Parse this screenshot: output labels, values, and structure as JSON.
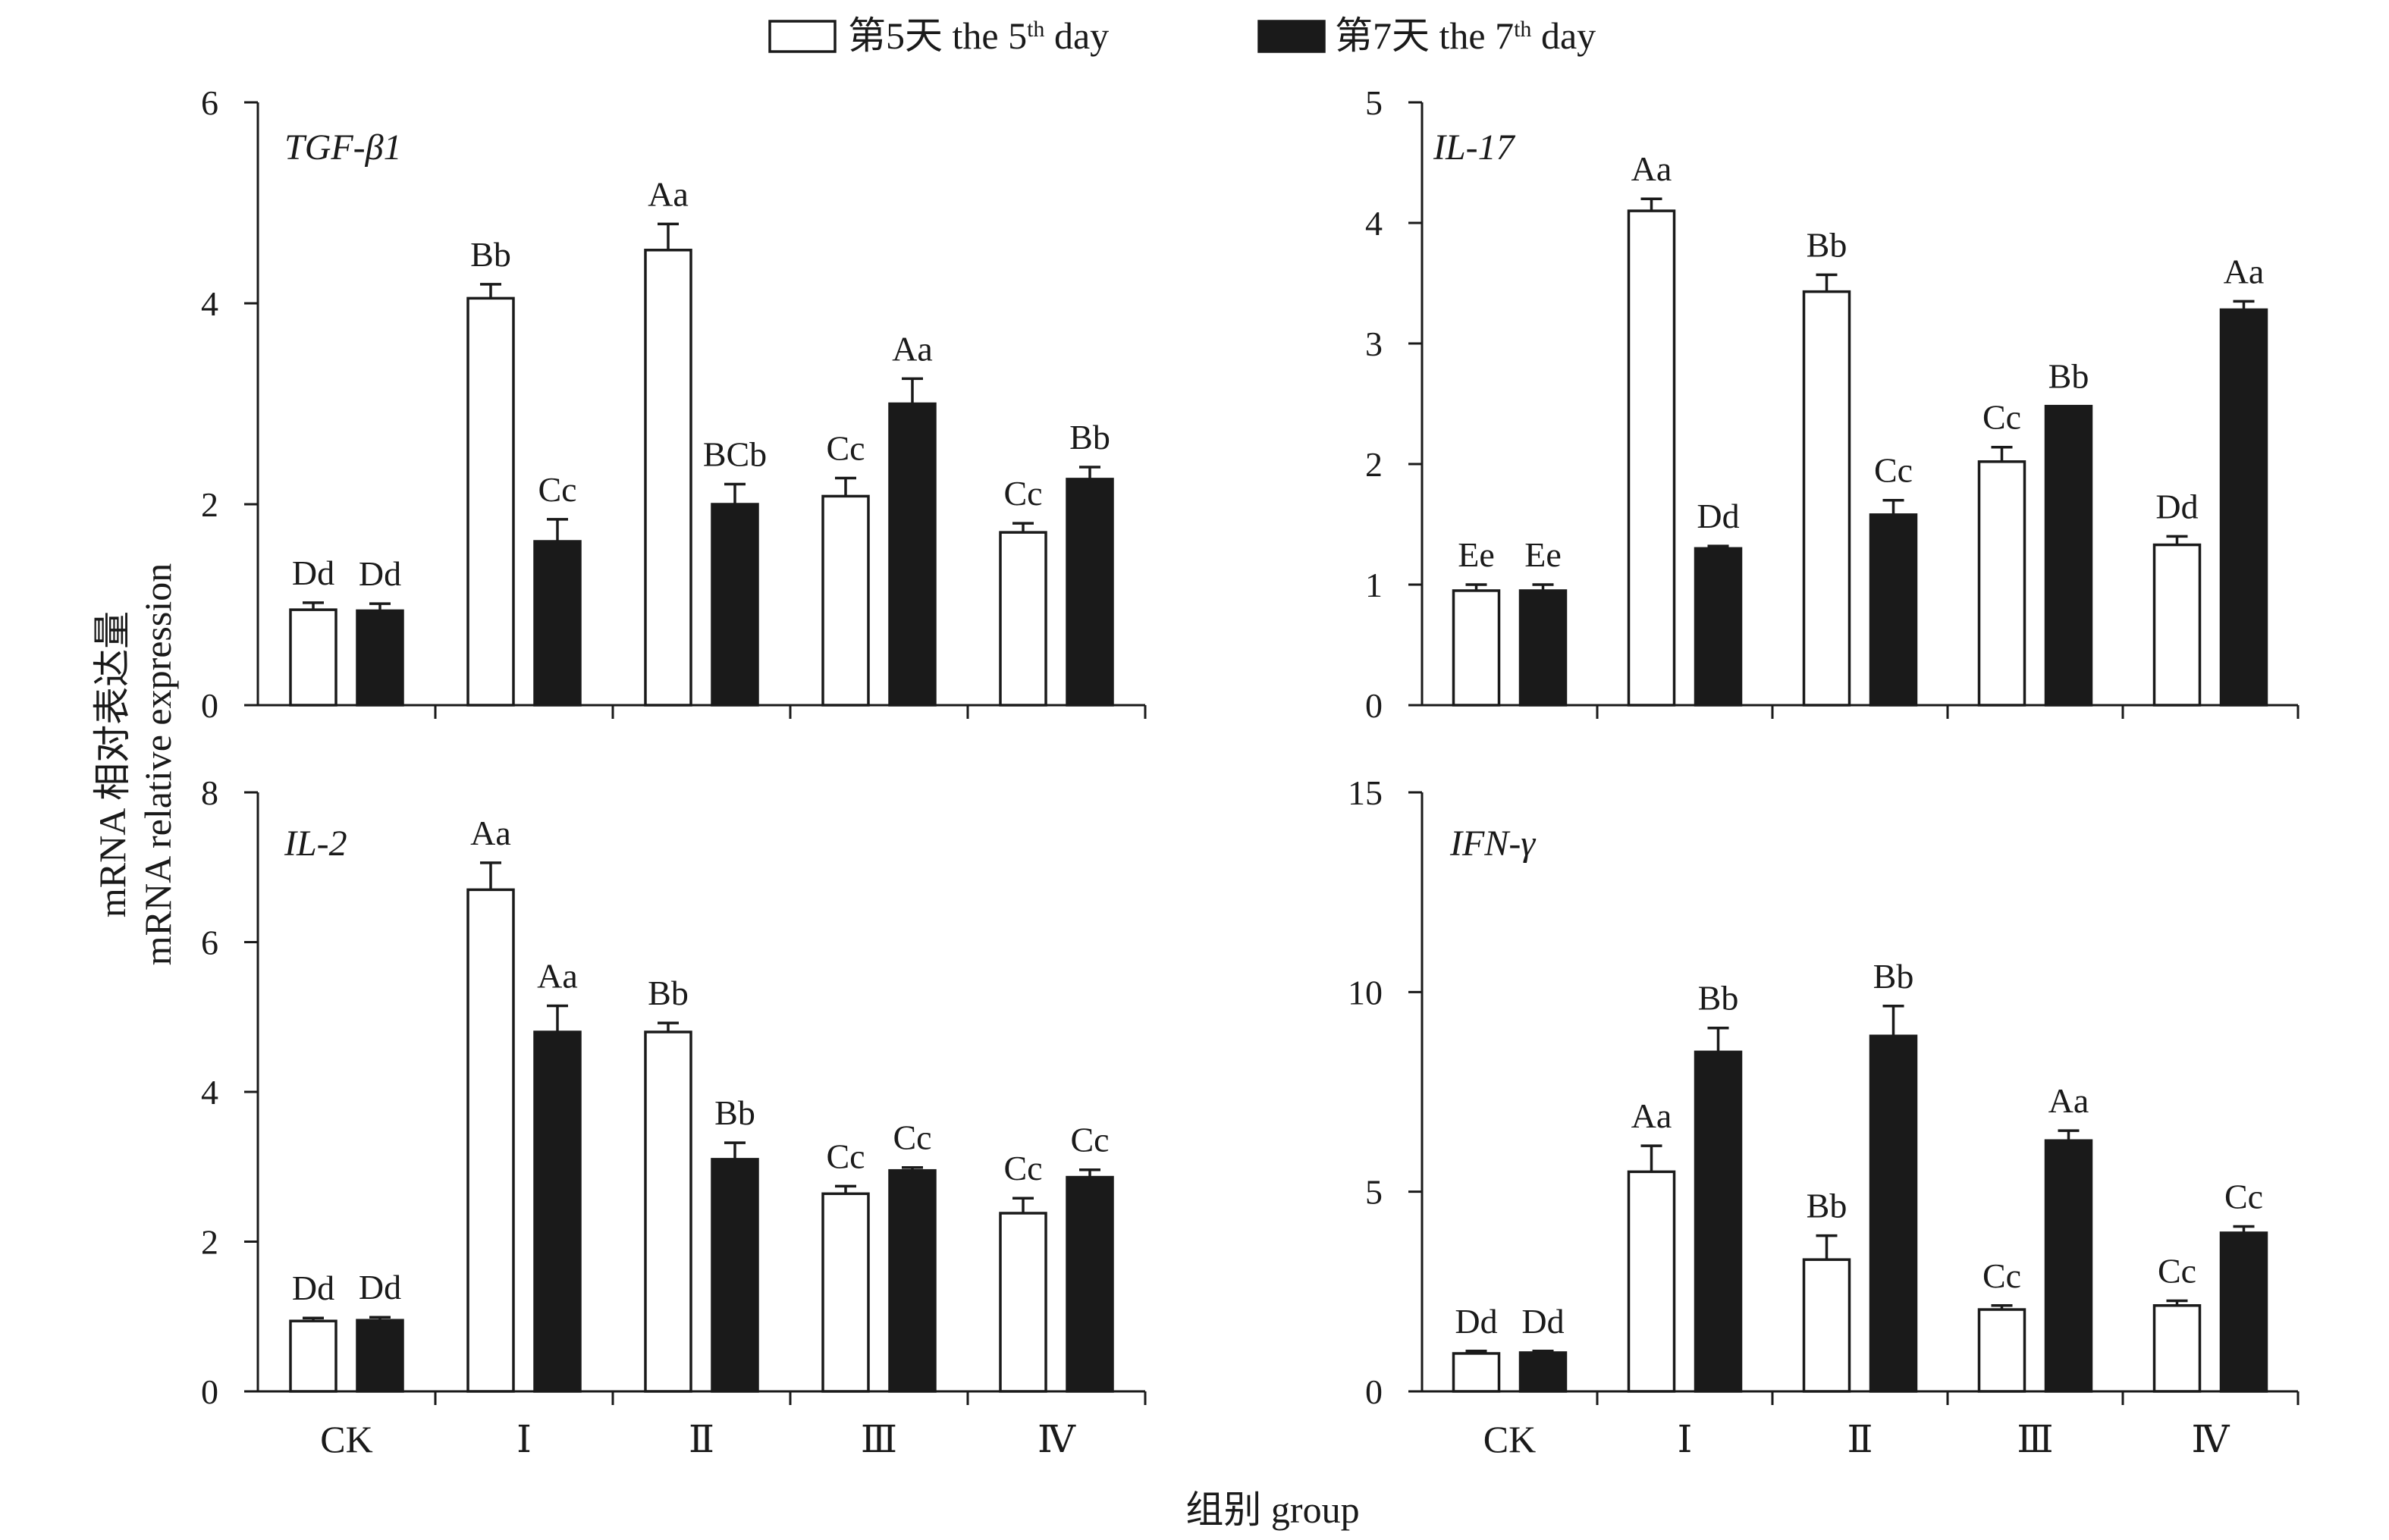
{
  "legend": {
    "series1": {
      "prefix": "第5天 the 5",
      "sup": "th",
      "suffix": " day",
      "style": "open"
    },
    "series2": {
      "prefix": "第7天 the 7",
      "sup": "th",
      "suffix": " day",
      "style": "solid"
    }
  },
  "y_axis_title": {
    "line1": "mRNA 相对表达量",
    "line2": "mRNA relative expression"
  },
  "x_axis_title": "组别 group",
  "colors": {
    "ink": "#1a1a1a",
    "open_fill": "#ffffff"
  },
  "chart_data": [
    {
      "type": "bar",
      "title": "TGF-β1",
      "categories": [
        "CK",
        "Ⅰ",
        "Ⅱ",
        "Ⅲ",
        "Ⅳ"
      ],
      "show_categories": false,
      "ylim": [
        0,
        6
      ],
      "yticks": [
        0,
        2,
        4,
        6
      ],
      "series": [
        {
          "name": "第5天 the 5th day",
          "values": [
            0.95,
            4.05,
            4.53,
            2.08,
            1.72
          ],
          "errors": [
            0.07,
            0.14,
            0.26,
            0.18,
            0.09
          ],
          "labels": [
            "Dd",
            "Bb",
            "Aa",
            "Cc",
            "Cc"
          ]
        },
        {
          "name": "第7天 the 7th day",
          "values": [
            0.94,
            1.63,
            2.0,
            3.0,
            2.25
          ],
          "errors": [
            0.07,
            0.22,
            0.2,
            0.25,
            0.12
          ],
          "labels": [
            "Dd",
            "Cc",
            "BCb",
            "Aa",
            "Bb"
          ]
        }
      ]
    },
    {
      "type": "bar",
      "title": "IL-17",
      "categories": [
        "CK",
        "Ⅰ",
        "Ⅱ",
        "Ⅲ",
        "Ⅳ"
      ],
      "show_categories": false,
      "ylim": [
        0,
        5
      ],
      "yticks": [
        0,
        1,
        2,
        3,
        4,
        5
      ],
      "series": [
        {
          "name": "第5天 the 5th day",
          "values": [
            0.95,
            4.1,
            3.43,
            2.02,
            1.33
          ],
          "errors": [
            0.05,
            0.1,
            0.14,
            0.12,
            0.07
          ],
          "labels": [
            "Ee",
            "Aa",
            "Bb",
            "Cc",
            "Dd"
          ]
        },
        {
          "name": "第7天 the 7th day",
          "values": [
            0.95,
            1.3,
            1.58,
            2.48,
            3.28
          ],
          "errors": [
            0.05,
            0.02,
            0.12,
            0,
            0.07
          ],
          "labels": [
            "Ee",
            "Dd",
            "Cc",
            "Bb",
            "Aa"
          ]
        }
      ]
    },
    {
      "type": "bar",
      "title": "IL-2",
      "categories": [
        "CK",
        "Ⅰ",
        "Ⅱ",
        "Ⅲ",
        "Ⅳ"
      ],
      "show_categories": true,
      "ylim": [
        0,
        8
      ],
      "yticks": [
        0,
        2,
        4,
        6,
        8
      ],
      "series": [
        {
          "name": "第5天 the 5th day",
          "values": [
            0.94,
            6.7,
            4.8,
            2.64,
            2.38
          ],
          "errors": [
            0.04,
            0.36,
            0.12,
            0.1,
            0.2
          ],
          "labels": [
            "Dd",
            "Aa",
            "Bb",
            "Cc",
            "Cc"
          ]
        },
        {
          "name": "第7天 the 7th day",
          "values": [
            0.95,
            4.8,
            3.1,
            2.95,
            2.86
          ],
          "errors": [
            0.04,
            0.35,
            0.22,
            0.04,
            0.1
          ],
          "labels": [
            "Dd",
            "Aa",
            "Bb",
            "Cc",
            "Cc"
          ]
        }
      ]
    },
    {
      "type": "bar",
      "title": "IFN-γ",
      "categories": [
        "CK",
        "Ⅰ",
        "Ⅱ",
        "Ⅲ",
        "Ⅳ"
      ],
      "show_categories": true,
      "ylim": [
        0,
        15
      ],
      "yticks": [
        0,
        5,
        10,
        15
      ],
      "series": [
        {
          "name": "第5天 the 5th day",
          "values": [
            0.95,
            5.5,
            3.3,
            2.05,
            2.15
          ],
          "errors": [
            0.06,
            0.65,
            0.6,
            0.1,
            0.12
          ],
          "labels": [
            "Dd",
            "Aa",
            "Bb",
            "Cc",
            "Cc"
          ]
        },
        {
          "name": "第7天 the 7th day",
          "values": [
            0.97,
            8.5,
            8.9,
            6.28,
            3.97
          ],
          "errors": [
            0.04,
            0.6,
            0.75,
            0.25,
            0.16
          ],
          "labels": [
            "Dd",
            "Bb",
            "Bb",
            "Aa",
            "Cc"
          ]
        }
      ]
    }
  ]
}
